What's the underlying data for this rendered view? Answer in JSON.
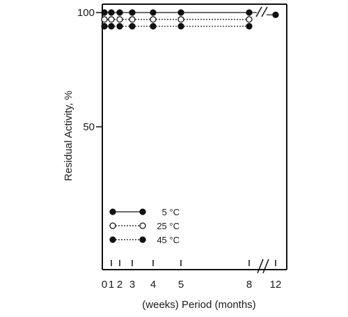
{
  "chart_data": {
    "type": "line",
    "ylabel": "Residual Activity, %",
    "xlabel": "(weeks) Period (months)",
    "y_ticks": [
      {
        "value": 100,
        "label": "100"
      },
      {
        "value": 50,
        "label": "50"
      }
    ],
    "x_ticks": [
      {
        "value": 0,
        "label": "0"
      },
      {
        "value": 1,
        "label": "1"
      },
      {
        "value": 2,
        "label": "2"
      },
      {
        "value": 3,
        "label": "3"
      },
      {
        "value": 4,
        "label": "4"
      },
      {
        "value": 5,
        "label": "5"
      },
      {
        "value": 8,
        "label": "8"
      },
      {
        "value": 12,
        "label": "12"
      }
    ],
    "x_units": {
      "weeks": [
        0,
        1,
        2,
        3
      ],
      "months": [
        4,
        5,
        8,
        12
      ]
    },
    "axis_break": true,
    "ylim": [
      0,
      100
    ],
    "legend_position": "lower-left",
    "series": [
      {
        "name": "5 °C",
        "marker": "filled",
        "line": "solid",
        "color": "#111111",
        "points": [
          {
            "x": 0,
            "y": 100
          },
          {
            "x": 1,
            "y": 100
          },
          {
            "x": 2,
            "y": 100
          },
          {
            "x": 3,
            "y": 100
          },
          {
            "x": 4,
            "y": 100
          },
          {
            "x": 5,
            "y": 100
          },
          {
            "x": 8,
            "y": 100
          },
          {
            "x": 12,
            "y": 99
          }
        ]
      },
      {
        "name": "25 °C",
        "marker": "open",
        "line": "dotted",
        "color": "#111111",
        "points": [
          {
            "x": 0,
            "y": 97
          },
          {
            "x": 1,
            "y": 97
          },
          {
            "x": 2,
            "y": 97
          },
          {
            "x": 3,
            "y": 97
          },
          {
            "x": 4,
            "y": 97
          },
          {
            "x": 5,
            "y": 97
          },
          {
            "x": 8,
            "y": 97
          }
        ]
      },
      {
        "name": "45 °C",
        "marker": "filled",
        "line": "dotted",
        "color": "#111111",
        "points": [
          {
            "x": 0,
            "y": 94
          },
          {
            "x": 1,
            "y": 94
          },
          {
            "x": 2,
            "y": 94
          },
          {
            "x": 3,
            "y": 94
          },
          {
            "x": 4,
            "y": 94
          },
          {
            "x": 5,
            "y": 94
          },
          {
            "x": 8,
            "y": 94
          }
        ]
      }
    ]
  }
}
